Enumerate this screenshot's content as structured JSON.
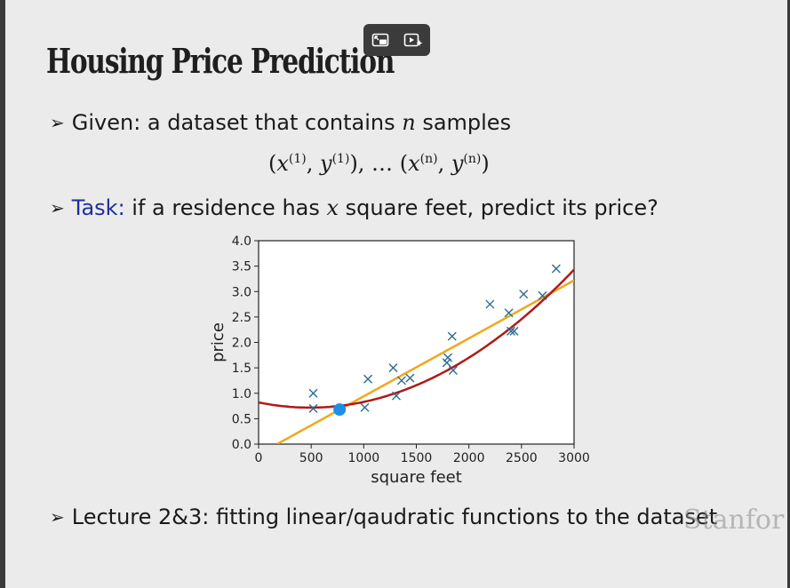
{
  "slide": {
    "title": "Housing Price Prediction",
    "bullet1": {
      "prefix": "Given: a dataset that contains ",
      "var": "n",
      "suffix": " samples"
    },
    "formula": {
      "open": "(",
      "x1": "x",
      "x1_sup": "(1)",
      "comma1": ", ",
      "y1": "y",
      "y1_sup": "(1)",
      "close1": "), … (",
      "xn": "x",
      "xn_sup": "(n)",
      "comma2": ", ",
      "yn": "y",
      "yn_sup": "(n)",
      "close2": ")"
    },
    "bullet2": {
      "task_label": "Task:",
      "prefix": " if a residence has ",
      "var": "x",
      "suffix": " square feet, predict its price?"
    },
    "bullet3": "Lecture 2&3: fitting linear/qaudratic functions to the dataset",
    "watermark": "Stanfor"
  },
  "toolbar": {
    "icons": [
      "pip-icon",
      "ai-video-icon"
    ]
  },
  "colors": {
    "task_label": "#1f2f9a",
    "points": "#2b6c8f",
    "quadratic_fit": "#b01818",
    "linear_fit": "#f0a81a",
    "highlight_point": "#1e8fe6"
  },
  "chart_data": {
    "type": "scatter",
    "xlabel": "square feet",
    "ylabel": "price",
    "xlim": [
      0,
      3000
    ],
    "ylim": [
      0,
      4.0
    ],
    "x_ticks": [
      "0",
      "500",
      "1000",
      "1500",
      "2000",
      "2500",
      "3000"
    ],
    "y_ticks": [
      "0.0",
      "0.5",
      "1.0",
      "1.5",
      "2.0",
      "2.5",
      "3.0",
      "3.5",
      "4.0"
    ],
    "points": [
      {
        "x": 520,
        "y": 1.0
      },
      {
        "x": 520,
        "y": 0.7
      },
      {
        "x": 1010,
        "y": 0.72
      },
      {
        "x": 1040,
        "y": 1.28
      },
      {
        "x": 1280,
        "y": 1.5
      },
      {
        "x": 1310,
        "y": 0.95
      },
      {
        "x": 1360,
        "y": 1.25
      },
      {
        "x": 1440,
        "y": 1.3
      },
      {
        "x": 1790,
        "y": 1.6
      },
      {
        "x": 1800,
        "y": 1.7
      },
      {
        "x": 1840,
        "y": 2.12
      },
      {
        "x": 1850,
        "y": 1.45
      },
      {
        "x": 2200,
        "y": 2.75
      },
      {
        "x": 2380,
        "y": 2.58
      },
      {
        "x": 2400,
        "y": 2.22
      },
      {
        "x": 2430,
        "y": 2.22
      },
      {
        "x": 2520,
        "y": 2.95
      },
      {
        "x": 2700,
        "y": 2.92
      },
      {
        "x": 2830,
        "y": 3.45
      }
    ],
    "highlight": {
      "x": 770,
      "y": 0.68
    },
    "linear_fit": {
      "slope": 0.00114,
      "intercept": -0.2,
      "x_range": [
        180,
        3000
      ]
    },
    "quadratic_fit": {
      "a": 4.3e-07,
      "b": -0.00042,
      "c": 0.82,
      "x_range": [
        0,
        3000
      ]
    },
    "grid": false
  }
}
